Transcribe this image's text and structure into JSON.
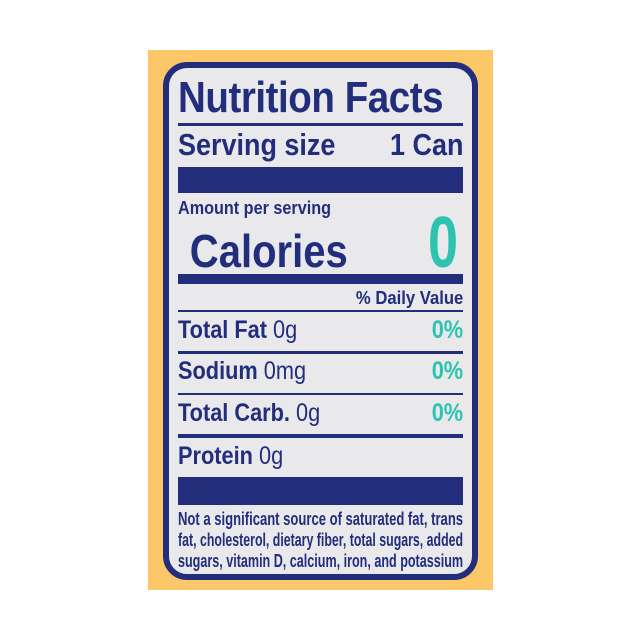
{
  "colors": {
    "navy": "#222e7c",
    "teal": "#2ec3b1",
    "card": "#fbc768",
    "panel": "#e9e9ec",
    "page": "#ffffff"
  },
  "label": {
    "title": "Nutrition Facts",
    "serving_size_label": "Serving size",
    "serving_size_value": "1 Can",
    "amount_per_serving": "Amount per serving",
    "calories_label": "Calories",
    "calories_value": "0",
    "daily_value_header": "% Daily Value",
    "nutrients": [
      {
        "name": "Total Fat",
        "amount": "0g",
        "daily_value": "0%"
      },
      {
        "name": "Sodium",
        "amount": "0mg",
        "daily_value": "0%"
      },
      {
        "name": "Total Carb.",
        "amount": "0g",
        "daily_value": "0%"
      },
      {
        "name": "Protein",
        "amount": "0g",
        "daily_value": ""
      }
    ],
    "footnote_lines": [
      "Not a significant source of saturated fat, trans",
      "fat, cholesterol, dietary fiber, total sugars, added",
      "sugars, vitamin D, calcium, iron, and potassium"
    ]
  }
}
